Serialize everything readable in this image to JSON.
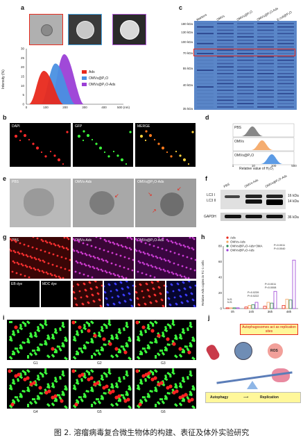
{
  "caption": "图 2.  溶瘤病毒复合微生物体的构建、表征及体外实验研究",
  "panels": {
    "a": {
      "label": "a",
      "ylabel": "Intensity (%)",
      "yticks": [
        "0",
        "5",
        "10",
        "15",
        "20",
        "25",
        "30"
      ],
      "xticks": [
        "0",
        "100",
        "200",
        "300",
        "400",
        "500 (nm)"
      ],
      "legend": [
        {
          "name": "Ads",
          "color": "#e8291c"
        },
        {
          "name": "OMVs@P₂O",
          "color": "#4a90e2"
        },
        {
          "name": "OMVs@P₂O-Ads",
          "color": "#9b3fd6"
        }
      ],
      "tem_frames": [
        "#e8291c",
        "#4aa8e8",
        "#b05bd8"
      ]
    },
    "b": {
      "label": "b",
      "titles": [
        "DAPI",
        "GFP",
        "MERGE"
      ]
    },
    "c": {
      "label": "c",
      "lanes": [
        "Markers",
        "OMVs",
        "OMVs@P₂O",
        "OMVs@P₂O-Ads",
        "E.coli@P₂O"
      ],
      "kda": [
        "180 kDa",
        "130 kDa",
        "100 kDa",
        "70 kDa",
        "55 kDa",
        "40 kDa",
        "35 kDa"
      ]
    },
    "d": {
      "label": "d",
      "rows": [
        "PBS",
        "OMVs",
        "OMVs@P₂O"
      ],
      "colors": [
        "#7a7a7a",
        "#f4a460",
        "#4a90e2"
      ],
      "xticks": [
        "1",
        "10",
        "100",
        "500"
      ],
      "xlabel": "Relative value of H₂O₂"
    },
    "e": {
      "label": "e",
      "titles": [
        "PBS",
        "OMVs-Ads",
        "OMVs@P₂O-Ads"
      ]
    },
    "f": {
      "label": "f",
      "lanes": [
        "PBS",
        "OMVs-Ads",
        "OMVs@P₂O-Ads"
      ],
      "rows": [
        "LC3 I",
        "LC3 II",
        "GAPDH"
      ],
      "kda": [
        "16 kDa",
        "14 kDa",
        "36 kDa"
      ]
    },
    "g": {
      "label": "g",
      "titles": [
        "PBS",
        "OMVs-Ads",
        "OMVs@P₂O-Ads"
      ],
      "dyes": [
        "EB dye",
        "MDC dye"
      ]
    },
    "h": {
      "label": "h",
      "ylabel": "Relative Ads copies in TC-1 cells",
      "yticks": [
        "0",
        "20",
        "40",
        "60",
        "80"
      ],
      "groups": [
        "0h",
        "24h",
        "36h",
        "48h"
      ],
      "legend": [
        {
          "name": "Ads",
          "color": "#e8291c"
        },
        {
          "name": "OMVs-Ads",
          "color": "#f4a460"
        },
        {
          "name": "OMVs@P₂O-Ads+3MA",
          "color": "#2e8b57"
        },
        {
          "name": "OMVs@P₂O-Ads",
          "color": "#9b3fd6"
        }
      ],
      "annotations": [
        "N.S.",
        "N.S.",
        "P=0.0239",
        "P=0.0222",
        "P=0.0011",
        "P=0.0008",
        "P=0.0011",
        "P=0.0040"
      ]
    },
    "i": {
      "label": "i",
      "groups": [
        "G1",
        "G2",
        "G3",
        "G4",
        "G5",
        "G6"
      ]
    },
    "j": {
      "label": "j",
      "box": "Autophagosomes act as replication sites",
      "ros": "ROS",
      "bottom_left": "Autophagy",
      "bottom_right": "Replication"
    }
  },
  "chart_data": [
    {
      "type": "area",
      "title": "",
      "ylabel": "Intensity (%)",
      "xlabel": "(nm)",
      "xlim": [
        0,
        500
      ],
      "ylim": [
        0,
        30
      ],
      "series": [
        {
          "name": "Ads",
          "peak_x": 90,
          "peak_y": 18
        },
        {
          "name": "OMVs@P₂O",
          "peak_x": 150,
          "peak_y": 22
        },
        {
          "name": "OMVs@P₂O-Ads",
          "peak_x": 195,
          "peak_y": 27
        }
      ]
    },
    {
      "type": "bar",
      "title": "",
      "ylabel": "Relative Ads copies in TC-1 cells",
      "ylim": [
        0,
        80
      ],
      "categories": [
        "0h",
        "24h",
        "36h",
        "48h"
      ],
      "series": [
        {
          "name": "Ads",
          "values": [
            1,
            2,
            3,
            4
          ]
        },
        {
          "name": "OMVs-Ads",
          "values": [
            1,
            4,
            8,
            12
          ]
        },
        {
          "name": "OMVs@P₂O-Ads+3MA",
          "values": [
            1,
            5,
            7,
            11
          ]
        },
        {
          "name": "OMVs@P₂O-Ads",
          "values": [
            1,
            8,
            22,
            62
          ]
        }
      ]
    }
  ]
}
